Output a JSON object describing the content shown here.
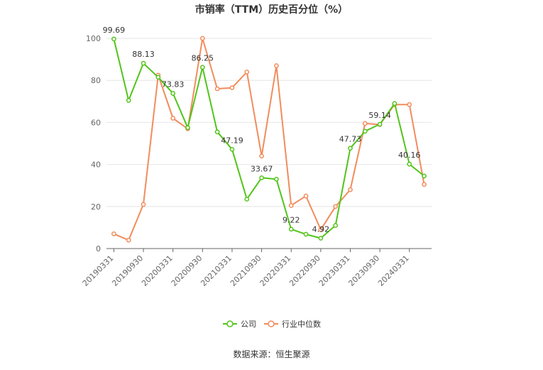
{
  "chart_data": {
    "type": "line",
    "title": "市销率（TTM）历史百分位（%）",
    "source": "数据来源：恒生聚源",
    "xlabel": "",
    "ylabel": "",
    "ylim": [
      0,
      100
    ],
    "yticks": [
      0,
      20,
      40,
      60,
      80,
      100
    ],
    "grid": true,
    "legend_position": "bottom",
    "x": [
      "20190331",
      "20190630",
      "20190930",
      "20191231",
      "20200331",
      "20200630",
      "20200930",
      "20201231",
      "20210331",
      "20210630",
      "20210930",
      "20211231",
      "20220331",
      "20220630",
      "20220930",
      "20221231",
      "20230331",
      "20230630",
      "20230930",
      "20231231",
      "20240331",
      "20240630"
    ],
    "xtick_labels": [
      "20190331",
      "20190930",
      "20200331",
      "20200930",
      "20210331",
      "20210930",
      "20220331",
      "20220930",
      "20230331",
      "20230930",
      "20240331"
    ],
    "series": [
      {
        "name": "公司",
        "color": "#52c41a",
        "values": [
          99.69,
          70.5,
          88.13,
          81.5,
          73.83,
          57.5,
          86.25,
          55.5,
          47.19,
          23.5,
          33.67,
          33.0,
          9.22,
          6.8,
          4.92,
          11.0,
          47.73,
          55.8,
          59.14,
          69.0,
          40.16,
          34.5
        ],
        "labels": [
          {
            "index": 0,
            "text": "99.69"
          },
          {
            "index": 2,
            "text": "88.13"
          },
          {
            "index": 4,
            "text": "73.83"
          },
          {
            "index": 6,
            "text": "86.25"
          },
          {
            "index": 8,
            "text": "47.19"
          },
          {
            "index": 10,
            "text": "33.67"
          },
          {
            "index": 12,
            "text": "9.22"
          },
          {
            "index": 14,
            "text": "4.92"
          },
          {
            "index": 16,
            "text": "47.73"
          },
          {
            "index": 18,
            "text": "59.14"
          },
          {
            "index": 20,
            "text": "40.16"
          }
        ]
      },
      {
        "name": "行业中位数",
        "color": "#f28c5c",
        "values": [
          7.0,
          4.0,
          21.0,
          82.5,
          62.0,
          57.0,
          100.0,
          76.0,
          76.5,
          84.0,
          44.0,
          87.0,
          20.5,
          25.0,
          9.0,
          20.0,
          28.0,
          59.5,
          59.0,
          68.5,
          68.5,
          30.5
        ]
      }
    ]
  }
}
